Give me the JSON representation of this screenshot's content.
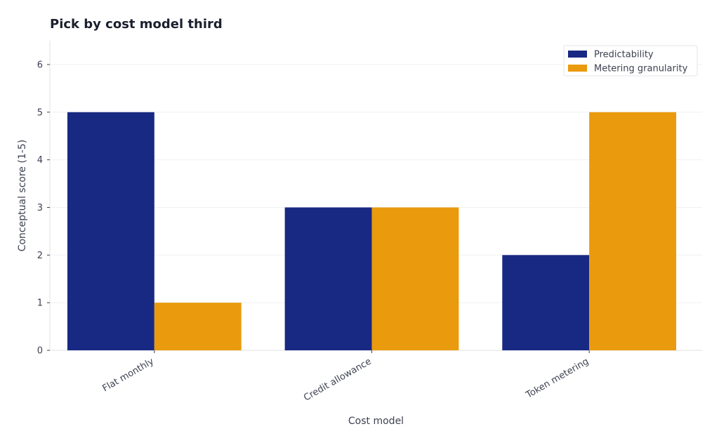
{
  "chart_data": {
    "type": "bar",
    "title": "Pick by cost model third",
    "xlabel": "Cost model",
    "ylabel": "Conceptual score (1-5)",
    "categories": [
      "Flat monthly",
      "Credit allowance",
      "Token metering"
    ],
    "series": [
      {
        "name": "Predictability",
        "values": [
          5,
          3,
          2
        ],
        "color": "#182983"
      },
      {
        "name": "Metering granularity",
        "values": [
          1,
          3,
          5
        ],
        "color": "#ea9a0d"
      }
    ],
    "ylim": [
      0,
      6.5
    ],
    "yticks": [
      0,
      1,
      2,
      3,
      4,
      5,
      6
    ],
    "grid": true,
    "legend_position": "top-right"
  }
}
